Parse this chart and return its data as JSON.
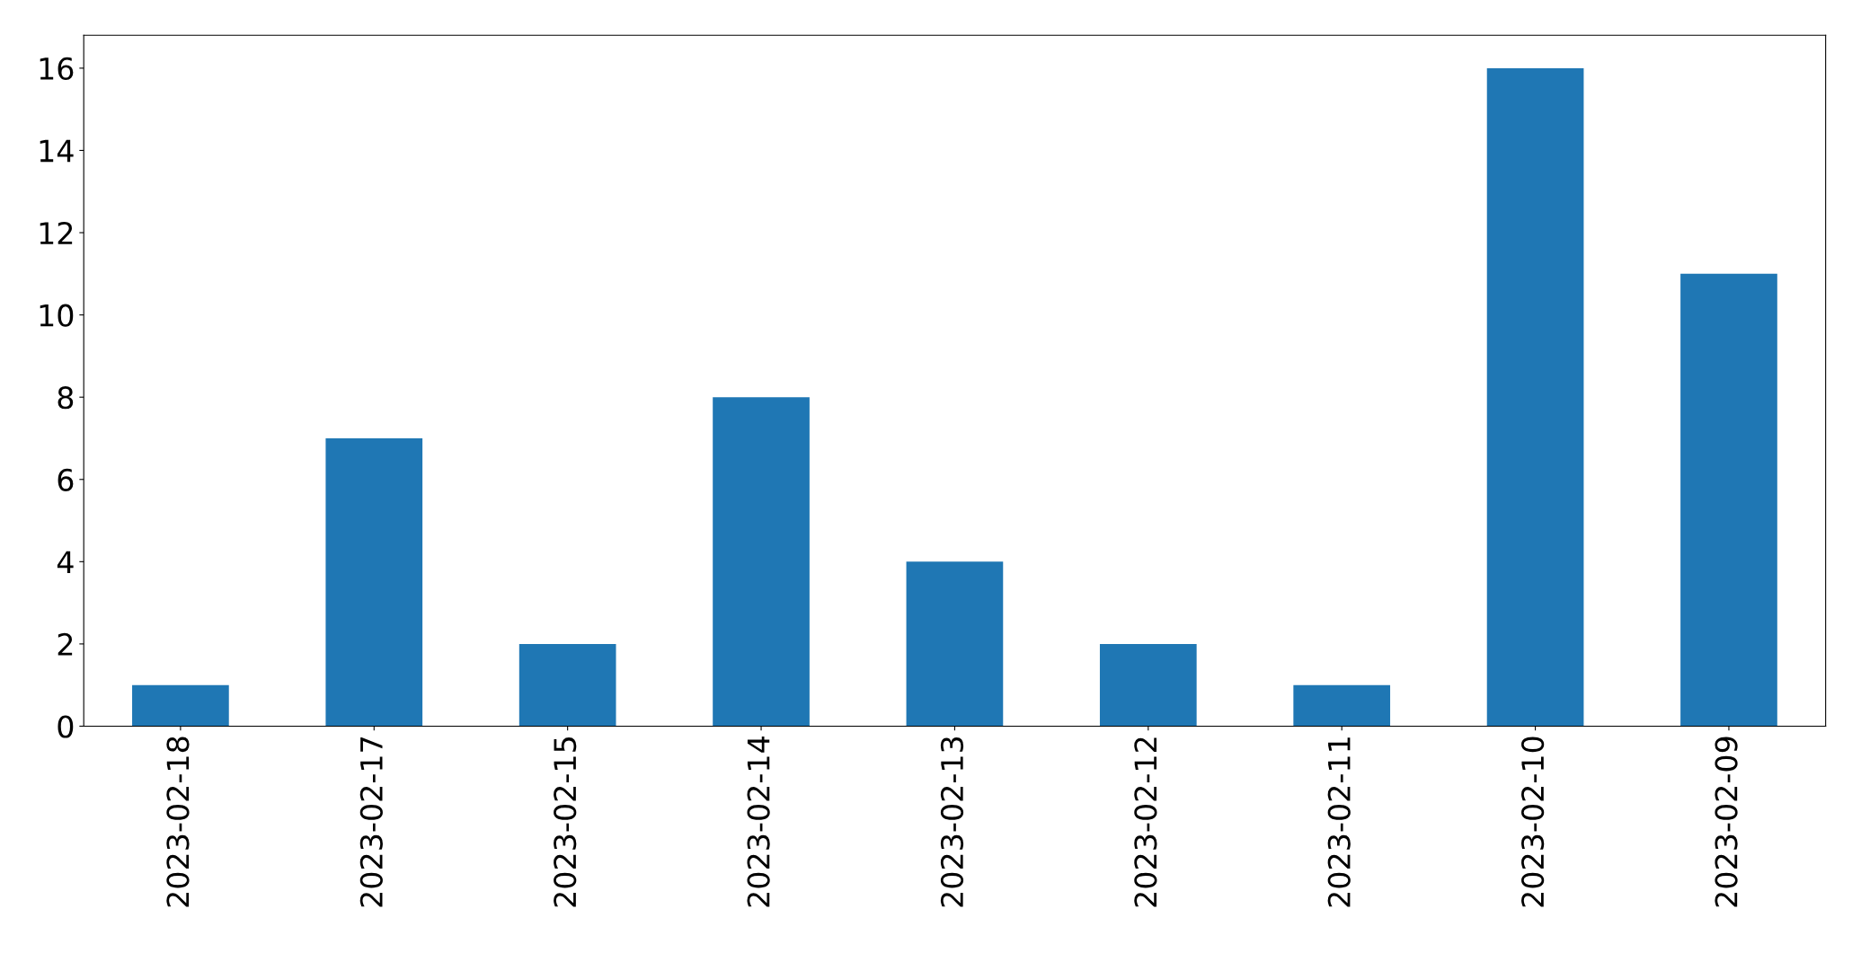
{
  "chart_data": {
    "type": "bar",
    "categories": [
      "2023-02-18",
      "2023-02-17",
      "2023-02-15",
      "2023-02-14",
      "2023-02-13",
      "2023-02-12",
      "2023-02-11",
      "2023-02-10",
      "2023-02-09"
    ],
    "values": [
      1,
      7,
      2,
      8,
      4,
      2,
      1,
      16,
      11
    ],
    "color": "#1f77b4",
    "ylim": [
      0,
      16.8
    ],
    "yticks": [
      0,
      2,
      4,
      6,
      8,
      10,
      12,
      14,
      16
    ],
    "grid": false
  }
}
